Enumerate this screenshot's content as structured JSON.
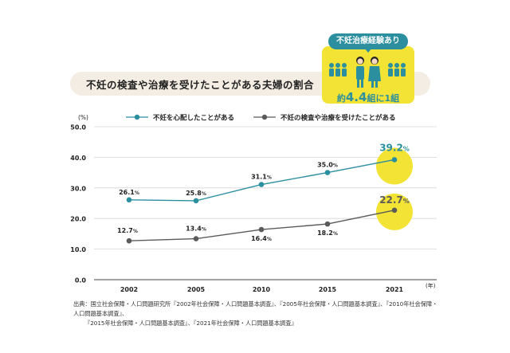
{
  "title": "不妊の検査や治療を受けたことがある夫婦の割合",
  "badge": {
    "label": "不妊治療経験あり",
    "ratio_prefix": "約",
    "ratio_value": "4.4",
    "ratio_suffix": "組に1組"
  },
  "source": {
    "line1": "出典：国立社会保障・人口問題研究所『2002年社会保障・人口問題基本調査』、『2005年社会保障・人口問題基本調査』、『2010年社会保障・人口問題基本調査』、",
    "line2": "『2015年社会保障・人口問題基本調査』、『2021年社会保障・人口問題基本調査』"
  },
  "colors": {
    "series1": "#2b8fa0",
    "series2": "#5a5a5a",
    "highlight": "#f3e334",
    "title_bg": "#f3ede4"
  },
  "chart_data": {
    "type": "line",
    "x": [
      "2002",
      "2005",
      "2010",
      "2015",
      "2021"
    ],
    "x_unit": "(年)",
    "y_unit": "(%)",
    "ylim": [
      0,
      50
    ],
    "yticks": [
      "0.0",
      "10.0",
      "20.0",
      "30.0",
      "40.0",
      "50.0"
    ],
    "grid": true,
    "legend_position": "top",
    "series": [
      {
        "name": "不妊を心配したことがある",
        "values": [
          26.1,
          25.8,
          31.1,
          35.0,
          39.2
        ],
        "labels": [
          "26.1",
          "25.8",
          "31.1",
          "35.0",
          "39.2"
        ]
      },
      {
        "name": "不妊の検査や治療を受けたことがある",
        "values": [
          12.7,
          13.4,
          16.4,
          18.2,
          22.7
        ],
        "labels": [
          "12.7",
          "13.4",
          "16.4",
          "18.2",
          "22.7"
        ]
      }
    ],
    "label_unit": "%"
  }
}
